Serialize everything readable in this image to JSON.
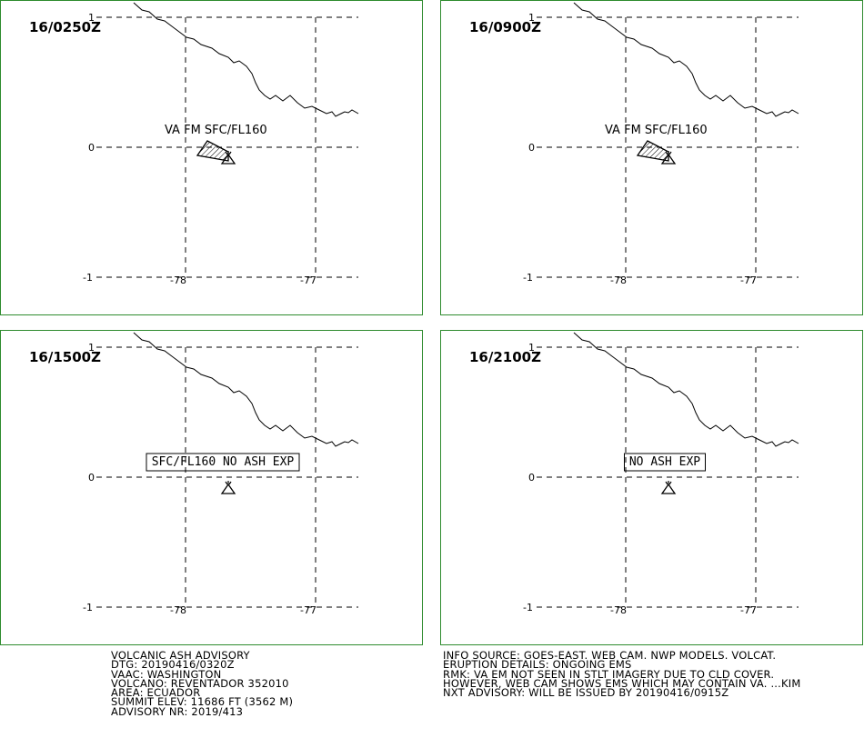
{
  "panels": [
    {
      "time": "16/0250Z",
      "label": "VA FM SFC/FL160",
      "label_boxed": false,
      "ash": true
    },
    {
      "time": "16/0900Z",
      "label": "VA FM SFC/FL160",
      "label_boxed": false,
      "ash": true
    },
    {
      "time": "16/1500Z",
      "label": "SFC/FL160 NO ASH EXP",
      "label_boxed": true,
      "ash": false
    },
    {
      "time": "16/2100Z",
      "label": "NO ASH EXP",
      "label_boxed": true,
      "ash": false
    }
  ],
  "axes": {
    "lat_labels": [
      "1",
      "0",
      "-1"
    ],
    "lon_labels": [
      "-78",
      "-77"
    ]
  },
  "left_text": [
    "VOLCANIC ASH ADVISORY",
    "DTG: 20190416/0320Z",
    "VAAC: WASHINGTON",
    "VOLCANO: REVENTADOR 352010",
    "AREA: ECUADOR",
    "SUMMIT ELEV: 11686 FT (3562 M)",
    "ADVISORY NR: 2019/413"
  ],
  "right_text": [
    "INFO SOURCE: GOES-EAST. WEB CAM. NWP MODELS. VOLCAT.",
    "ERUPTION DETAILS: ONGOING EMS",
    "RMK: VA EM NOT SEEN IN STLT IMAGERY DUE TO CLD COVER.",
    "HOWEVER, WEB CAM SHOWS EMS WHICH MAY CONTAIN VA. ...KIM",
    "NXT ADVISORY: WILL BE ISSUED BY 20190416/0915Z"
  ],
  "colors": {
    "border": "#2e8b2e",
    "lines": "#000000"
  },
  "icons": {
    "volcano": "volcano-icon"
  }
}
